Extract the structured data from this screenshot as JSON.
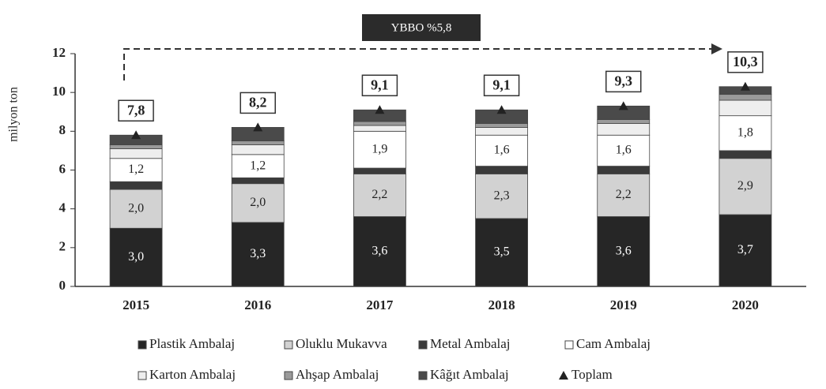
{
  "chart_data": {
    "type": "stacked_bar",
    "annotation": "YBBO %5,8",
    "y_label": "milyon ton",
    "categories": [
      "2015",
      "2016",
      "2017",
      "2018",
      "2019",
      "2020"
    ],
    "ylim": [
      0,
      12
    ],
    "yticks": [
      0,
      2,
      4,
      6,
      8,
      10,
      12
    ],
    "series": [
      {
        "name": "Plastik Ambalaj",
        "color": "#262626",
        "values": [
          3.0,
          3.3,
          3.6,
          3.5,
          3.6,
          3.7
        ],
        "value_labels": [
          "3,0",
          "3,3",
          "3,6",
          "3,5",
          "3,6",
          "3,7"
        ]
      },
      {
        "name": "Oluklu Mukavva",
        "color": "#d2d2d2",
        "values": [
          2.0,
          2.0,
          2.2,
          2.3,
          2.2,
          2.9
        ],
        "value_labels": [
          "2,0",
          "2,0",
          "2,2",
          "2,3",
          "2,2",
          "2,9"
        ]
      },
      {
        "name": "Metal Ambalaj",
        "color": "#3a3a3a",
        "values": [
          0.4,
          0.3,
          0.3,
          0.4,
          0.4,
          0.4
        ]
      },
      {
        "name": "Cam Ambalaj",
        "color": "#ffffff",
        "values": [
          1.2,
          1.2,
          1.9,
          1.6,
          1.6,
          1.8
        ],
        "value_labels": [
          "1,2",
          "1,2",
          "1,9",
          "1,6",
          "1,6",
          "1,8"
        ]
      },
      {
        "name": "Karton Ambalaj",
        "color": "#eeeeee",
        "values": [
          0.5,
          0.5,
          0.3,
          0.4,
          0.6,
          0.8
        ]
      },
      {
        "name": "Ahşap Ambalaj",
        "color": "#9a9a9a",
        "values": [
          0.2,
          0.2,
          0.2,
          0.2,
          0.2,
          0.3
        ]
      },
      {
        "name": "Kâğıt Ambalaj",
        "color": "#4a4a4a",
        "values": [
          0.5,
          0.7,
          0.6,
          0.7,
          0.7,
          0.4
        ]
      }
    ],
    "total": {
      "name": "Toplam",
      "color": "#222222",
      "values": [
        7.8,
        8.2,
        9.1,
        9.1,
        9.3,
        10.3
      ],
      "value_labels": [
        "7,8",
        "8,2",
        "9,1",
        "9,1",
        "9,3",
        "10,3"
      ]
    }
  }
}
